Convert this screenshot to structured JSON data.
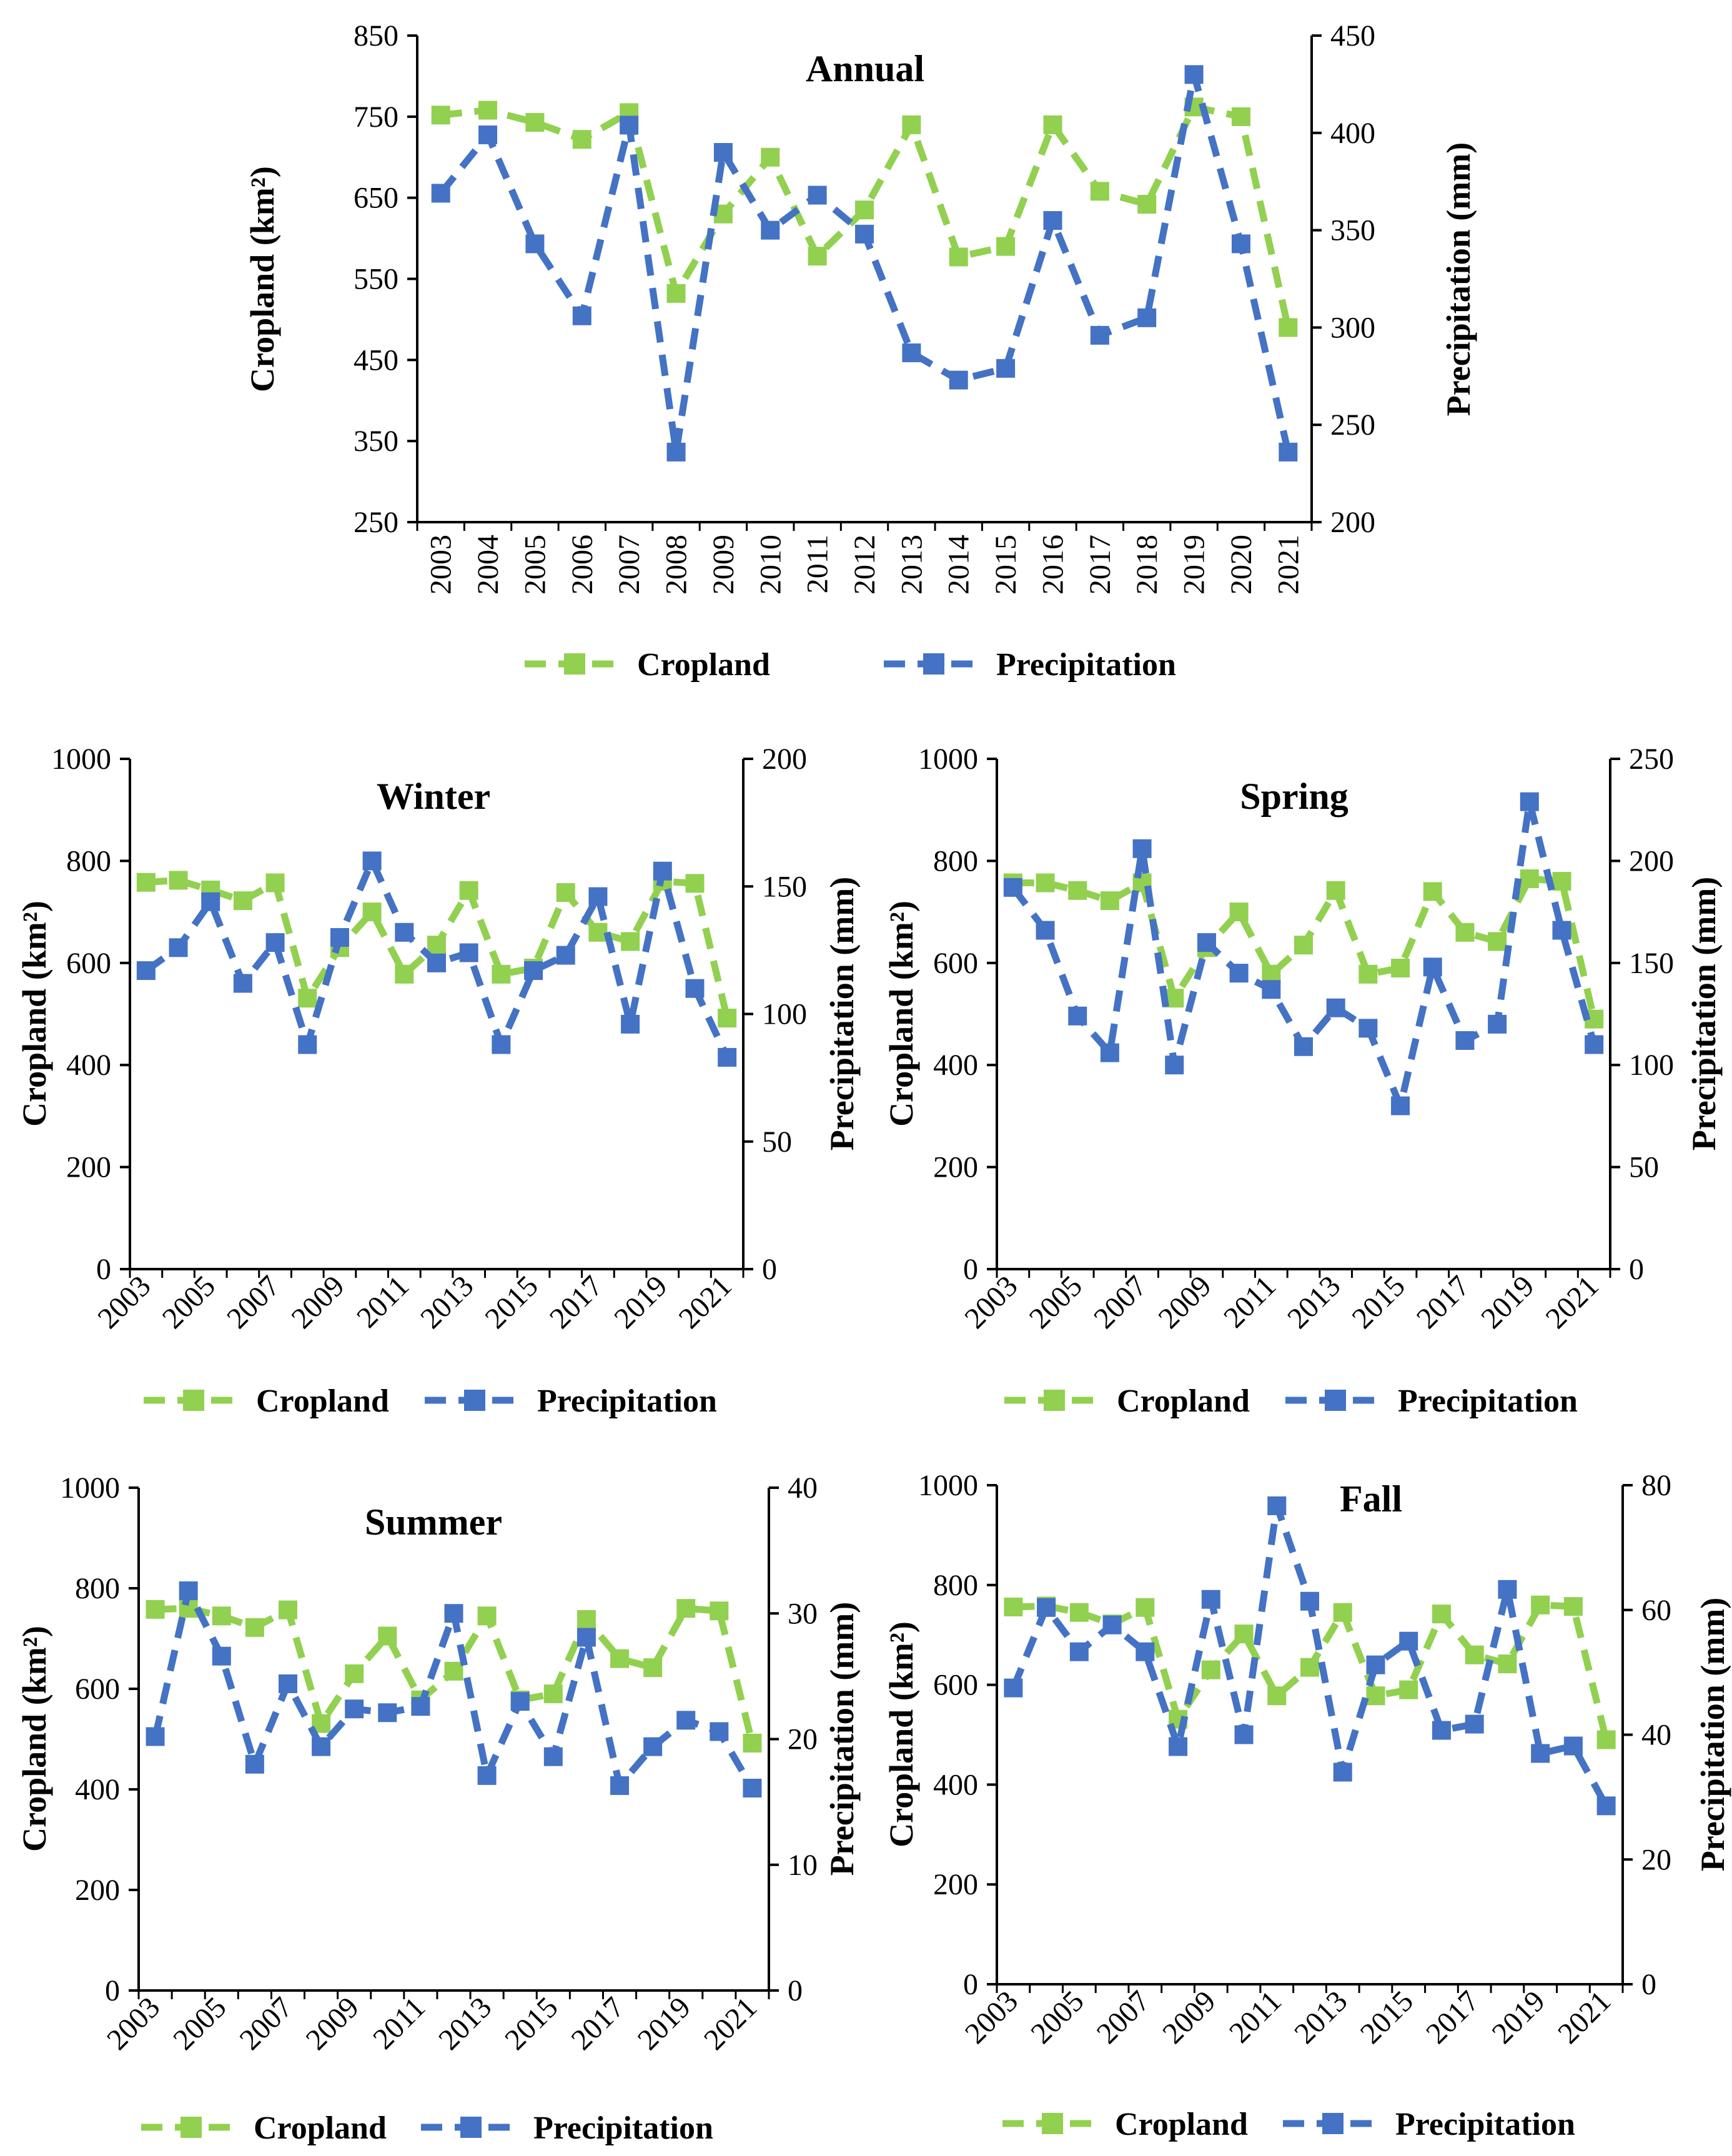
{
  "figure": {
    "name": "Cropland and precipitation time series by season"
  },
  "legend": {
    "cropland": "Cropland",
    "precipitation": "Precipitation"
  },
  "colors": {
    "cropland": "#92D050",
    "precipitation": "#4472C4",
    "axis": "#000000"
  },
  "chart_data": [
    {
      "id": "annual",
      "type": "line",
      "title": "Annual",
      "ylabel": "Cropland (km²)",
      "y2label": "Precipitation (mm)",
      "ylim": [
        250,
        850
      ],
      "yticks": [
        250,
        350,
        450,
        550,
        650,
        750,
        850
      ],
      "y2lim": [
        200,
        450
      ],
      "y2ticks": [
        200,
        250,
        300,
        350,
        400,
        450
      ],
      "x": [
        2003,
        2004,
        2005,
        2006,
        2007,
        2008,
        2009,
        2010,
        2011,
        2012,
        2013,
        2014,
        2015,
        2016,
        2017,
        2018,
        2019,
        2020,
        2021
      ],
      "xticklabels": [
        "2003",
        "2004",
        "2005",
        "2006",
        "2007",
        "2008",
        "2009",
        "2010",
        "2011",
        "2012",
        "2013",
        "2014",
        "2015",
        "2016",
        "2017",
        "2018",
        "2019",
        "2020",
        "2021"
      ],
      "series": [
        {
          "name": "Cropland",
          "axis": "left",
          "values": [
            752,
            758,
            743,
            722,
            755,
            532,
            630,
            700,
            578,
            635,
            740,
            577,
            590,
            740,
            658,
            642,
            762,
            750,
            490
          ]
        },
        {
          "name": "Precipitation",
          "axis": "right",
          "values": [
            369,
            399,
            343,
            306,
            404,
            236,
            390,
            350,
            368,
            348,
            287,
            273,
            279,
            355,
            296,
            305,
            430,
            343,
            236
          ]
        }
      ]
    },
    {
      "id": "winter",
      "type": "line",
      "title": "Winter",
      "ylabel": "Cropland (km²)",
      "y2label": "Precipitation (mm)",
      "ylim": [
        0,
        1000
      ],
      "yticks": [
        0,
        200,
        400,
        600,
        800,
        1000
      ],
      "y2lim": [
        0,
        200
      ],
      "y2ticks": [
        0,
        50,
        100,
        150,
        200
      ],
      "x": [
        2003,
        2004,
        2005,
        2006,
        2007,
        2008,
        2009,
        2010,
        2011,
        2012,
        2013,
        2014,
        2015,
        2016,
        2017,
        2018,
        2019,
        2020,
        2021
      ],
      "xticklabels": [
        "2003",
        "",
        "2005",
        "",
        "2007",
        "",
        "2009",
        "",
        "2011",
        "",
        "2013",
        "",
        "2015",
        "",
        "2017",
        "",
        "2019",
        "",
        "2021"
      ],
      "series": [
        {
          "name": "Cropland",
          "axis": "left",
          "values": [
            758,
            762,
            743,
            722,
            757,
            531,
            630,
            700,
            578,
            635,
            742,
            578,
            590,
            738,
            660,
            642,
            760,
            756,
            492
          ]
        },
        {
          "name": "Precipitation",
          "axis": "right",
          "values": [
            117,
            126,
            144,
            112,
            128,
            88,
            130,
            160,
            132,
            120,
            124,
            88,
            117,
            123,
            146,
            96,
            156,
            110,
            83
          ]
        }
      ]
    },
    {
      "id": "spring",
      "type": "line",
      "title": "Spring",
      "ylabel": "Cropland (km²)",
      "y2label": "Precipitation (mm)",
      "ylim": [
        0,
        1000
      ],
      "yticks": [
        0,
        200,
        400,
        600,
        800,
        1000
      ],
      "y2lim": [
        0,
        250
      ],
      "y2ticks": [
        0,
        50,
        100,
        150,
        200,
        250
      ],
      "x": [
        2003,
        2004,
        2005,
        2006,
        2007,
        2008,
        2009,
        2010,
        2011,
        2012,
        2013,
        2014,
        2015,
        2016,
        2017,
        2018,
        2019,
        2020,
        2021
      ],
      "xticklabels": [
        "2003",
        "",
        "2005",
        "",
        "2007",
        "",
        "2009",
        "",
        "2011",
        "",
        "2013",
        "",
        "2015",
        "",
        "2017",
        "",
        "2019",
        "",
        "2021"
      ],
      "series": [
        {
          "name": "Cropland",
          "axis": "left",
          "values": [
            757,
            757,
            742,
            722,
            757,
            531,
            630,
            700,
            578,
            635,
            742,
            578,
            590,
            740,
            660,
            642,
            765,
            760,
            490
          ]
        },
        {
          "name": "Precipitation",
          "axis": "right",
          "values": [
            187,
            166,
            124,
            106,
            206,
            100,
            160,
            145,
            137,
            109,
            128,
            118,
            80,
            148,
            112,
            120,
            229,
            166,
            110
          ]
        }
      ]
    },
    {
      "id": "summer",
      "type": "line",
      "title": "Summer",
      "ylabel": "Cropland (km²)",
      "y2label": "Precipitation (mm)",
      "ylim": [
        0,
        1000
      ],
      "yticks": [
        0,
        200,
        400,
        600,
        800,
        1000
      ],
      "y2lim": [
        0,
        40
      ],
      "y2ticks": [
        0,
        10,
        20,
        30,
        40
      ],
      "x": [
        2003,
        2004,
        2005,
        2006,
        2007,
        2008,
        2009,
        2010,
        2011,
        2012,
        2013,
        2014,
        2015,
        2016,
        2017,
        2018,
        2019,
        2020,
        2021
      ],
      "xticklabels": [
        "2003",
        "",
        "2005",
        "",
        "2007",
        "",
        "2009",
        "",
        "2011",
        "",
        "2013",
        "",
        "2015",
        "",
        "2017",
        "",
        "2019",
        "",
        "2021"
      ],
      "series": [
        {
          "name": "Cropland",
          "axis": "left",
          "values": [
            758,
            760,
            745,
            722,
            757,
            531,
            630,
            705,
            578,
            635,
            745,
            578,
            590,
            738,
            660,
            642,
            760,
            755,
            492
          ]
        },
        {
          "name": "Precipitation",
          "axis": "right",
          "values": [
            20.2,
            31.8,
            26.6,
            18.0,
            24.4,
            19.4,
            22.4,
            22.1,
            22.6,
            30.0,
            17.1,
            23.0,
            18.6,
            28.1,
            16.3,
            19.4,
            21.5,
            20.6,
            16.1
          ]
        }
      ]
    },
    {
      "id": "fall",
      "type": "line",
      "title": "Fall",
      "ylabel": "Cropland (km²)",
      "y2label": "Precipitation (mm)",
      "ylim": [
        0,
        1000
      ],
      "yticks": [
        0,
        200,
        400,
        600,
        800,
        1000
      ],
      "y2lim": [
        0,
        80
      ],
      "y2ticks": [
        0,
        20,
        40,
        60,
        80
      ],
      "x": [
        2003,
        2004,
        2005,
        2006,
        2007,
        2008,
        2009,
        2010,
        2011,
        2012,
        2013,
        2014,
        2015,
        2016,
        2017,
        2018,
        2019,
        2020,
        2021
      ],
      "xticklabels": [
        "2003",
        "",
        "2005",
        "",
        "2007",
        "",
        "2009",
        "",
        "2011",
        "",
        "2013",
        "",
        "2015",
        "",
        "2017",
        "",
        "2019",
        "",
        "2021"
      ],
      "series": [
        {
          "name": "Cropland",
          "axis": "left",
          "values": [
            756,
            758,
            745,
            722,
            755,
            531,
            630,
            702,
            578,
            635,
            745,
            578,
            590,
            742,
            660,
            642,
            760,
            757,
            490
          ]
        },
        {
          "name": "Precipitation",
          "axis": "right",
          "values": [
            47.5,
            60.4,
            53.3,
            57.6,
            53.3,
            38.1,
            61.7,
            40.0,
            76.7,
            61.4,
            34.0,
            51.2,
            55.0,
            40.7,
            41.7,
            63.3,
            37.0,
            38.2,
            28.6
          ]
        }
      ]
    }
  ]
}
